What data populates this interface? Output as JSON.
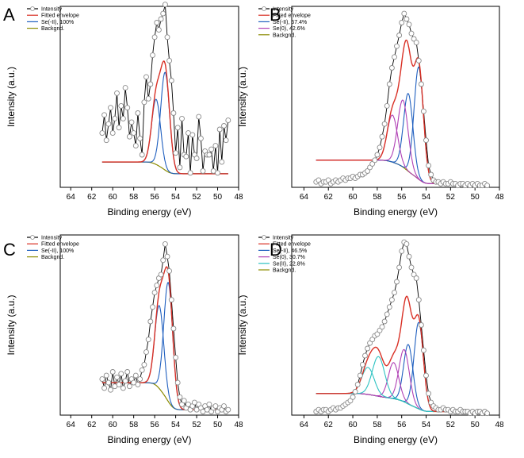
{
  "colors": {
    "data": "#000000",
    "marker": "#8a8a8a",
    "envelope": "#d93025",
    "se_minus2": "#1f5fbf",
    "se0": "#b040b5",
    "se2": "#2cc2c2",
    "background": "#8b8b00"
  },
  "chart_data": [
    {
      "panel": "A",
      "type": "line",
      "xlabel": "Binding energy (eV)",
      "ylabel": "Intensity (a.u.)",
      "xlim": [
        65,
        48
      ],
      "xticks": [
        64,
        62,
        60,
        58,
        56,
        54,
        52,
        50,
        48
      ],
      "ylim": [
        0,
        100
      ],
      "legend": [
        "Intensity",
        "Fitted envelope",
        "Se(-II), 100%",
        "Backgnd."
      ],
      "legend_position": "top-left",
      "background": {
        "type": "shirley",
        "low": 7.5,
        "high": 14
      },
      "peaks": [
        {
          "name": "Se(-II), 100%",
          "center": 55.0,
          "height": 54,
          "fwhm": 1.0
        },
        {
          "name": "Se(-II), 100%",
          "center": 55.86,
          "height": 36,
          "fwhm": 1.0
        }
      ],
      "intensity_x": [
        61.0,
        60.8,
        60.6,
        60.4,
        60.2,
        60.0,
        59.8,
        59.6,
        59.4,
        59.2,
        59.0,
        58.8,
        58.6,
        58.4,
        58.2,
        58.0,
        57.8,
        57.6,
        57.4,
        57.2,
        57.0,
        56.8,
        56.6,
        56.4,
        56.2,
        56.0,
        55.8,
        55.6,
        55.4,
        55.2,
        55.0,
        54.8,
        54.6,
        54.4,
        54.2,
        54.0,
        53.8,
        53.6,
        53.4,
        53.2,
        53.0,
        52.8,
        52.6,
        52.4,
        52.2,
        52.0,
        51.8,
        51.6,
        51.4,
        51.2,
        51.0,
        50.8,
        50.6,
        50.4,
        50.2,
        50.0,
        49.8,
        49.6,
        49.4,
        49.2,
        49.0
      ],
      "intensity_y": [
        30,
        40,
        26,
        35,
        44,
        30,
        38,
        52,
        33,
        45,
        38,
        55,
        44,
        28,
        36,
        30,
        23,
        41,
        27,
        18,
        47,
        61,
        49,
        57,
        73,
        83,
        91,
        87,
        93,
        96,
        101,
        83,
        70,
        59,
        41,
        19,
        33,
        11,
        38,
        18,
        17,
        30,
        8,
        29,
        18,
        16,
        39,
        27,
        9,
        20,
        18,
        18,
        21,
        9,
        23,
        8,
        32,
        14,
        34,
        26,
        37
      ]
    },
    {
      "panel": "B",
      "type": "line",
      "xlabel": "Binding energy (eV)",
      "ylabel": "Intensity (a.u.)",
      "xlim": [
        65,
        48
      ],
      "xticks": [
        64,
        62,
        60,
        58,
        56,
        54,
        52,
        50,
        48
      ],
      "ylim": [
        0,
        100
      ],
      "legend": [
        "Intensity",
        "Fitted envelope",
        "Se(-II), 57.4%",
        "Se(0), 42.6%",
        "Backgnd."
      ],
      "legend_position": "top-left",
      "background": {
        "type": "shirley",
        "low": 2,
        "high": 15
      },
      "peaks": [
        {
          "name": "Se(-II), 57.4%",
          "center": 54.6,
          "height": 62,
          "fwhm": 0.9
        },
        {
          "name": "Se(-II), 57.4%",
          "center": 55.46,
          "height": 43,
          "fwhm": 0.9
        },
        {
          "name": "Se(0), 42.6%",
          "center": 55.9,
          "height": 37,
          "fwhm": 1.0
        },
        {
          "name": "Se(0), 42.6%",
          "center": 56.76,
          "height": 26,
          "fwhm": 1.0
        }
      ],
      "intensity_x": [
        63.0,
        62.8,
        62.6,
        62.4,
        62.2,
        62.0,
        61.8,
        61.6,
        61.4,
        61.2,
        61.0,
        60.8,
        60.6,
        60.4,
        60.2,
        60.0,
        59.8,
        59.6,
        59.4,
        59.2,
        59.0,
        58.8,
        58.6,
        58.4,
        58.2,
        58.0,
        57.8,
        57.6,
        57.4,
        57.2,
        57.0,
        56.8,
        56.6,
        56.4,
        56.2,
        56.0,
        55.8,
        55.6,
        55.4,
        55.2,
        55.0,
        54.8,
        54.6,
        54.4,
        54.2,
        54.0,
        53.8,
        53.6,
        53.4,
        53.2,
        53.0,
        52.8,
        52.6,
        52.4,
        52.2,
        52.0,
        51.8,
        51.6,
        51.4,
        51.2,
        51.0,
        50.8,
        50.6,
        50.4,
        50.2,
        50.0,
        49.8,
        49.6,
        49.4,
        49.2,
        49.0
      ],
      "intensity_y": [
        3,
        4,
        2,
        3,
        3,
        4,
        2,
        3,
        4,
        3,
        4,
        5,
        4,
        5,
        5,
        6,
        5,
        6,
        7,
        7,
        8,
        9,
        11,
        13,
        15,
        18,
        22,
        28,
        35,
        45,
        57,
        66,
        72,
        78,
        84,
        91,
        96,
        93,
        90,
        85,
        82,
        80,
        70,
        57,
        42,
        26,
        12,
        7,
        4,
        3,
        3,
        2,
        3,
        2,
        2,
        3,
        2,
        2,
        1,
        2,
        2,
        1,
        2,
        1,
        2,
        1,
        2,
        1,
        1,
        2,
        1
      ]
    },
    {
      "panel": "C",
      "type": "line",
      "xlabel": "Binding energy (eV)",
      "ylabel": "Intensity (a.u.)",
      "xlim": [
        65,
        48
      ],
      "xticks": [
        64,
        62,
        60,
        58,
        56,
        54,
        52,
        50,
        48
      ],
      "ylim": [
        0,
        100
      ],
      "legend": [
        "Intensity",
        "Fitted envelope",
        "Se(-II), 100%",
        "Backgnd."
      ],
      "legend_position": "top-left",
      "background": {
        "type": "shirley",
        "low": 3,
        "high": 18
      },
      "peaks": [
        {
          "name": "Se(-II), 100%",
          "center": 54.7,
          "height": 66,
          "fwhm": 1.0
        },
        {
          "name": "Se(-II), 100%",
          "center": 55.56,
          "height": 46,
          "fwhm": 1.0
        }
      ],
      "intensity_x": [
        61.0,
        60.8,
        60.6,
        60.4,
        60.2,
        60.0,
        59.8,
        59.6,
        59.4,
        59.2,
        59.0,
        58.8,
        58.6,
        58.4,
        58.2,
        58.0,
        57.8,
        57.6,
        57.4,
        57.2,
        57.0,
        56.8,
        56.6,
        56.4,
        56.2,
        56.0,
        55.8,
        55.6,
        55.4,
        55.2,
        55.0,
        54.8,
        54.6,
        54.4,
        54.2,
        54.0,
        53.8,
        53.6,
        53.4,
        53.2,
        53.0,
        52.8,
        52.6,
        52.4,
        52.2,
        52.0,
        51.8,
        51.6,
        51.4,
        51.2,
        51.0,
        50.8,
        50.6,
        50.4,
        50.2,
        50.0,
        49.8,
        49.6,
        49.4,
        49.2,
        49.0
      ],
      "intensity_y": [
        20,
        15,
        22,
        18,
        14,
        24,
        16,
        21,
        17,
        23,
        15,
        19,
        24,
        16,
        20,
        18,
        22,
        17,
        20,
        25,
        28,
        35,
        42,
        52,
        60,
        68,
        72,
        76,
        78,
        86,
        95,
        88,
        80,
        64,
        48,
        32,
        18,
        10,
        6,
        8,
        4,
        6,
        3,
        5,
        7,
        3,
        6,
        4,
        2,
        5,
        3,
        6,
        2,
        4,
        5,
        2,
        4,
        3,
        5,
        2,
        3
      ]
    },
    {
      "panel": "D",
      "type": "line",
      "xlabel": "Binding energy (eV)",
      "ylabel": "Intensity (a.u.)",
      "xlim": [
        65,
        48
      ],
      "xticks": [
        64,
        62,
        60,
        58,
        56,
        54,
        52,
        50,
        48
      ],
      "ylim": [
        0,
        100
      ],
      "legend": [
        "Intensity",
        "Fitted envelope",
        "Se(-II), 46.5%",
        "Se(0), 30.7%",
        "Se(II), 22.8%",
        "Backgnd."
      ],
      "legend_position": "top-left",
      "background": {
        "type": "shirley",
        "low": 2,
        "high": 12
      },
      "peaks": [
        {
          "name": "Se(-II), 46.5%",
          "center": 54.6,
          "height": 48,
          "fwhm": 0.9
        },
        {
          "name": "Se(-II), 46.5%",
          "center": 55.46,
          "height": 33,
          "fwhm": 0.9
        },
        {
          "name": "Se(0), 30.7%",
          "center": 55.8,
          "height": 29,
          "fwhm": 1.0
        },
        {
          "name": "Se(0), 30.7%",
          "center": 56.66,
          "height": 20,
          "fwhm": 1.0
        },
        {
          "name": "Se(II), 22.8%",
          "center": 57.9,
          "height": 22,
          "fwhm": 1.2
        },
        {
          "name": "Se(II), 22.8%",
          "center": 58.76,
          "height": 15,
          "fwhm": 1.2
        }
      ],
      "intensity_x": [
        63.0,
        62.8,
        62.6,
        62.4,
        62.2,
        62.0,
        61.8,
        61.6,
        61.4,
        61.2,
        61.0,
        60.8,
        60.6,
        60.4,
        60.2,
        60.0,
        59.8,
        59.6,
        59.4,
        59.2,
        59.0,
        58.8,
        58.6,
        58.4,
        58.2,
        58.0,
        57.8,
        57.6,
        57.4,
        57.2,
        57.0,
        56.8,
        56.6,
        56.4,
        56.2,
        56.0,
        55.8,
        55.6,
        55.4,
        55.2,
        55.0,
        54.8,
        54.6,
        54.4,
        54.2,
        54.0,
        53.8,
        53.6,
        53.4,
        53.2,
        53.0,
        52.8,
        52.6,
        52.4,
        52.2,
        52.0,
        51.8,
        51.6,
        51.4,
        51.2,
        51.0,
        50.8,
        50.6,
        50.4,
        50.2,
        50.0,
        49.8,
        49.6,
        49.4,
        49.2,
        49.0
      ],
      "intensity_y": [
        2,
        3,
        2,
        3,
        3,
        2,
        3,
        4,
        3,
        4,
        4,
        5,
        6,
        7,
        8,
        10,
        13,
        17,
        22,
        28,
        33,
        37,
        40,
        42,
        44,
        45,
        47,
        49,
        52,
        56,
        60,
        64,
        68,
        74,
        82,
        91,
        96,
        95,
        88,
        82,
        78,
        76,
        64,
        50,
        36,
        22,
        12,
        7,
        5,
        4,
        3,
        3,
        4,
        3,
        3,
        2,
        3,
        2,
        2,
        3,
        2,
        2,
        2,
        1,
        2,
        1,
        2,
        2,
        1,
        2,
        1
      ]
    }
  ]
}
